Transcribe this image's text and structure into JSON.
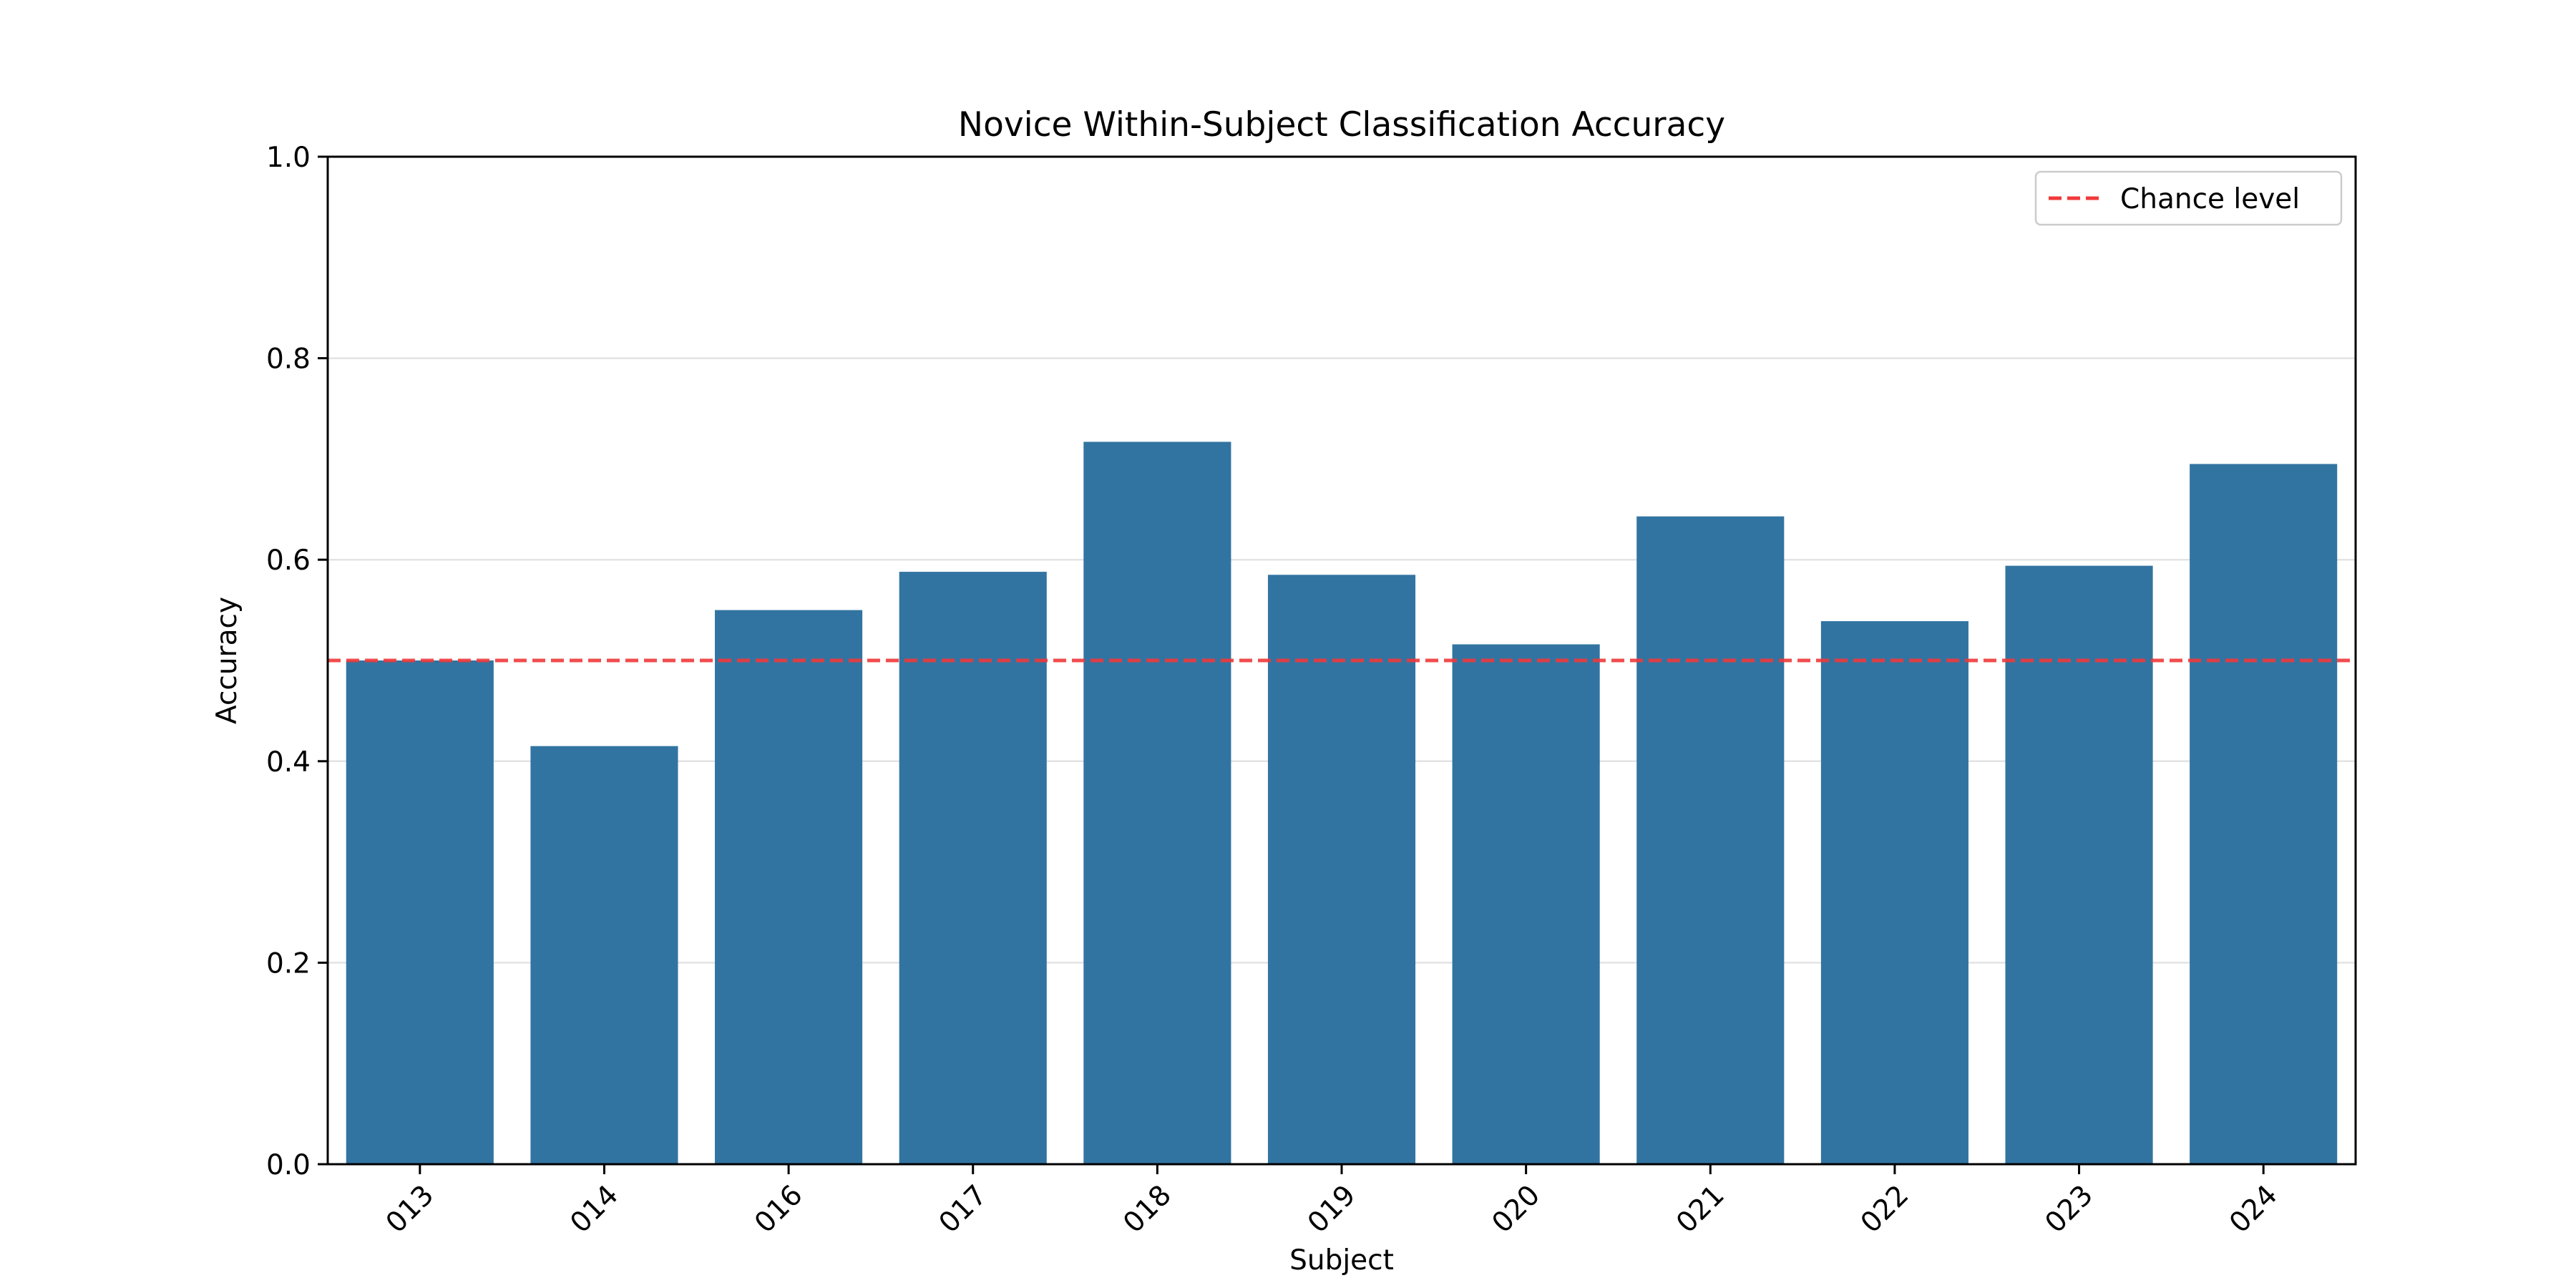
{
  "chart_data": {
    "type": "bar",
    "title": "Novice Within-Subject Classification Accuracy",
    "xlabel": "Subject",
    "ylabel": "Accuracy",
    "categories": [
      "013",
      "014",
      "016",
      "017",
      "018",
      "019",
      "020",
      "021",
      "022",
      "023",
      "024"
    ],
    "values": [
      0.5,
      0.415,
      0.55,
      0.588,
      0.717,
      0.585,
      0.516,
      0.643,
      0.539,
      0.594,
      0.695
    ],
    "ylim": [
      0,
      1.0
    ],
    "yticks": [
      "0.0",
      "0.2",
      "0.4",
      "0.6",
      "0.8",
      "1.0"
    ],
    "bar_color": "#3274a1",
    "grid": "horizontal",
    "reference_line": {
      "label": "Chance level",
      "value": 0.5,
      "color": "#f0393a",
      "style": "dashed"
    },
    "legend_position": "top-right"
  }
}
